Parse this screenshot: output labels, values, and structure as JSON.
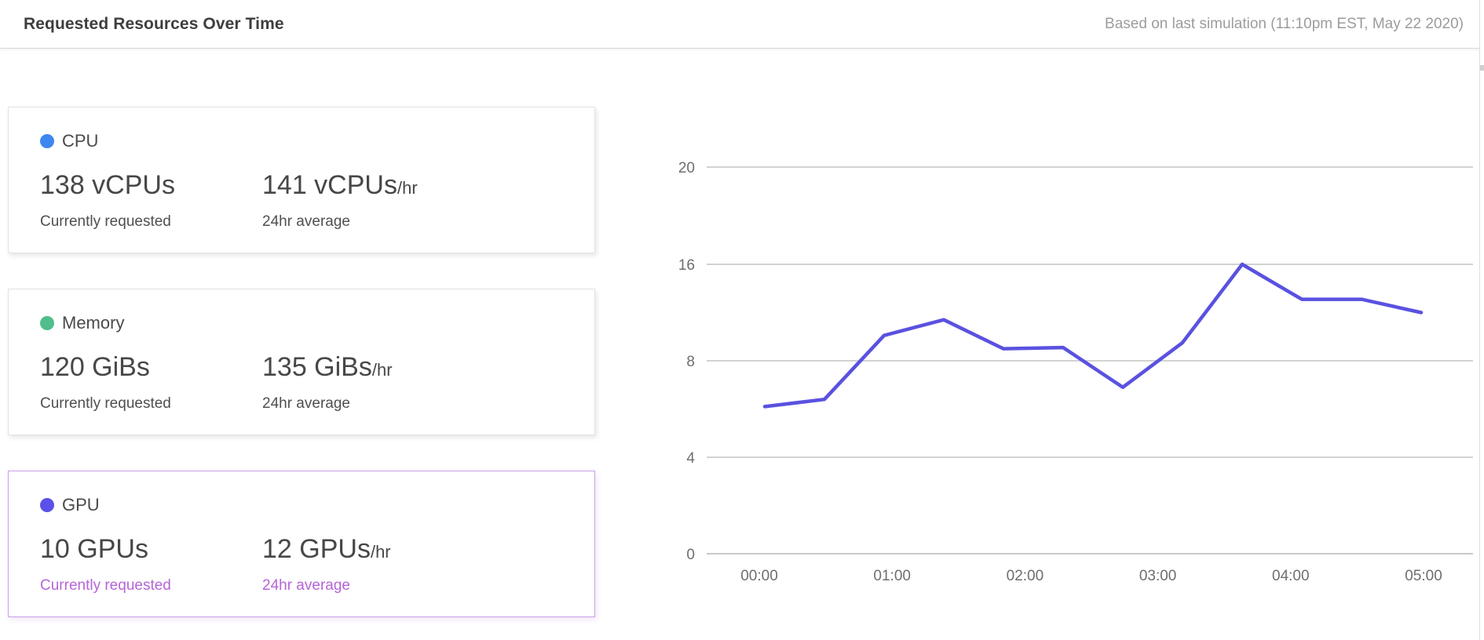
{
  "header": {
    "title": "Requested Resources Over Time",
    "subtitle": "Based on last simulation (11:10pm EST, May 22 2020)"
  },
  "cards": [
    {
      "label": "CPU",
      "dot_color": "#3d87f0",
      "current_value": "138 vCPUs",
      "current_caption": "Currently requested",
      "average_value": "141 vCPUs",
      "average_suffix": "/hr",
      "average_caption": "24hr average",
      "selected": false
    },
    {
      "label": "Memory",
      "dot_color": "#4fbe8c",
      "current_value": "120 GiBs",
      "current_caption": "Currently requested",
      "average_value": "135 GiBs",
      "average_suffix": "/hr",
      "average_caption": "24hr average",
      "selected": false
    },
    {
      "label": "GPU",
      "dot_color": "#5b51e8",
      "current_value": "10 GPUs",
      "current_caption": "Currently requested",
      "average_value": "12 GPUs",
      "average_suffix": "/hr",
      "average_caption": "24hr average",
      "selected": true
    }
  ],
  "chart_data": {
    "type": "line",
    "series": [
      {
        "name": "GPU",
        "values": [
          6.1,
          6.4,
          10.1,
          11.4,
          9.0,
          9.1,
          6.9,
          9.5,
          16.0,
          13.1,
          13.1,
          12.0
        ]
      }
    ],
    "x_tick_labels": [
      "00:00",
      "01:00",
      "02:00",
      "03:00",
      "04:00",
      "05:00"
    ],
    "y_tick_labels_top_to_bottom": [
      "20",
      "16",
      "8",
      "4",
      "0"
    ],
    "y_tick_values_top_to_bottom": [
      20,
      16,
      8,
      4,
      0
    ],
    "y_ticks_evenly_spaced": true,
    "grid": "horizontal-only",
    "legend": "none",
    "line_color": "#5a51e0"
  }
}
